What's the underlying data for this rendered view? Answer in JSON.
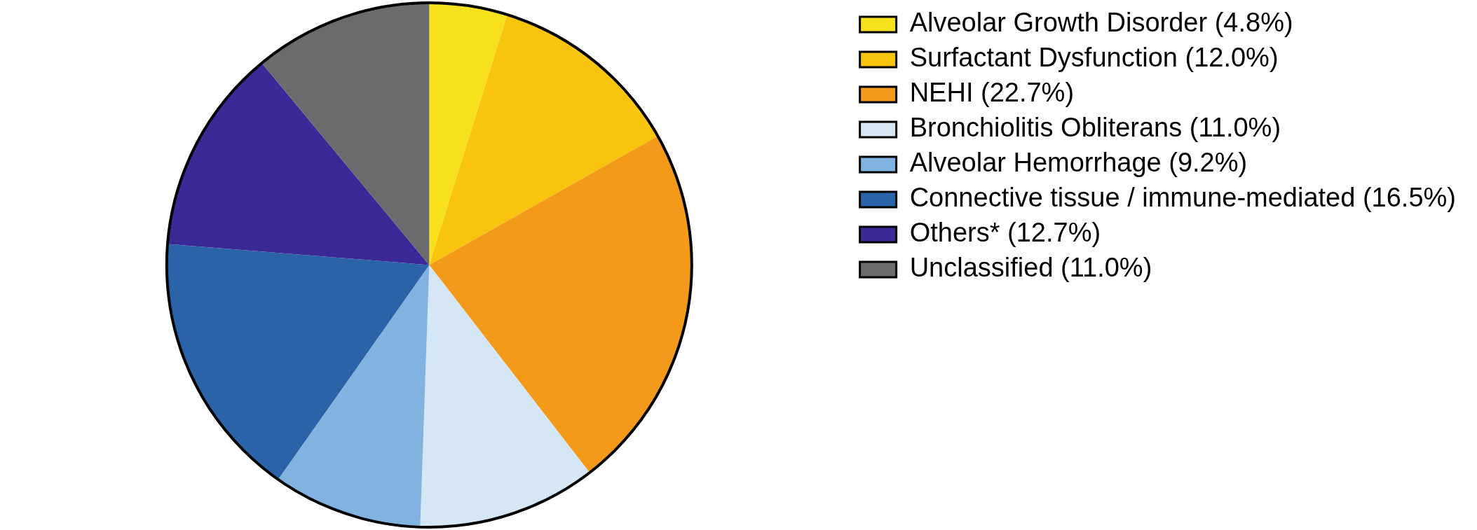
{
  "chart_data": {
    "type": "pie",
    "categories": [
      "Alveolar Growth Disorder (4.8%)",
      "Surfactant Dysfunction (12.0%)",
      "NEHI (22.7%)",
      "Bronchiolitis Obliterans (11.0%)",
      "Alveolar Hemorrhage (9.2%)",
      "Connective tissue / immune-mediated (16.5%)",
      "Others* (12.7%)",
      "Unclassified (11.0%)"
    ],
    "values": [
      4.8,
      12.0,
      22.7,
      11.0,
      9.2,
      16.5,
      12.7,
      11.0
    ],
    "colors": [
      "#f7e11c",
      "#f8c40e",
      "#f39a1b",
      "#d5e7f4",
      "#80b3df",
      "#2a63a7",
      "#3a2a98",
      "#6a6b6d"
    ],
    "legend": "right"
  }
}
